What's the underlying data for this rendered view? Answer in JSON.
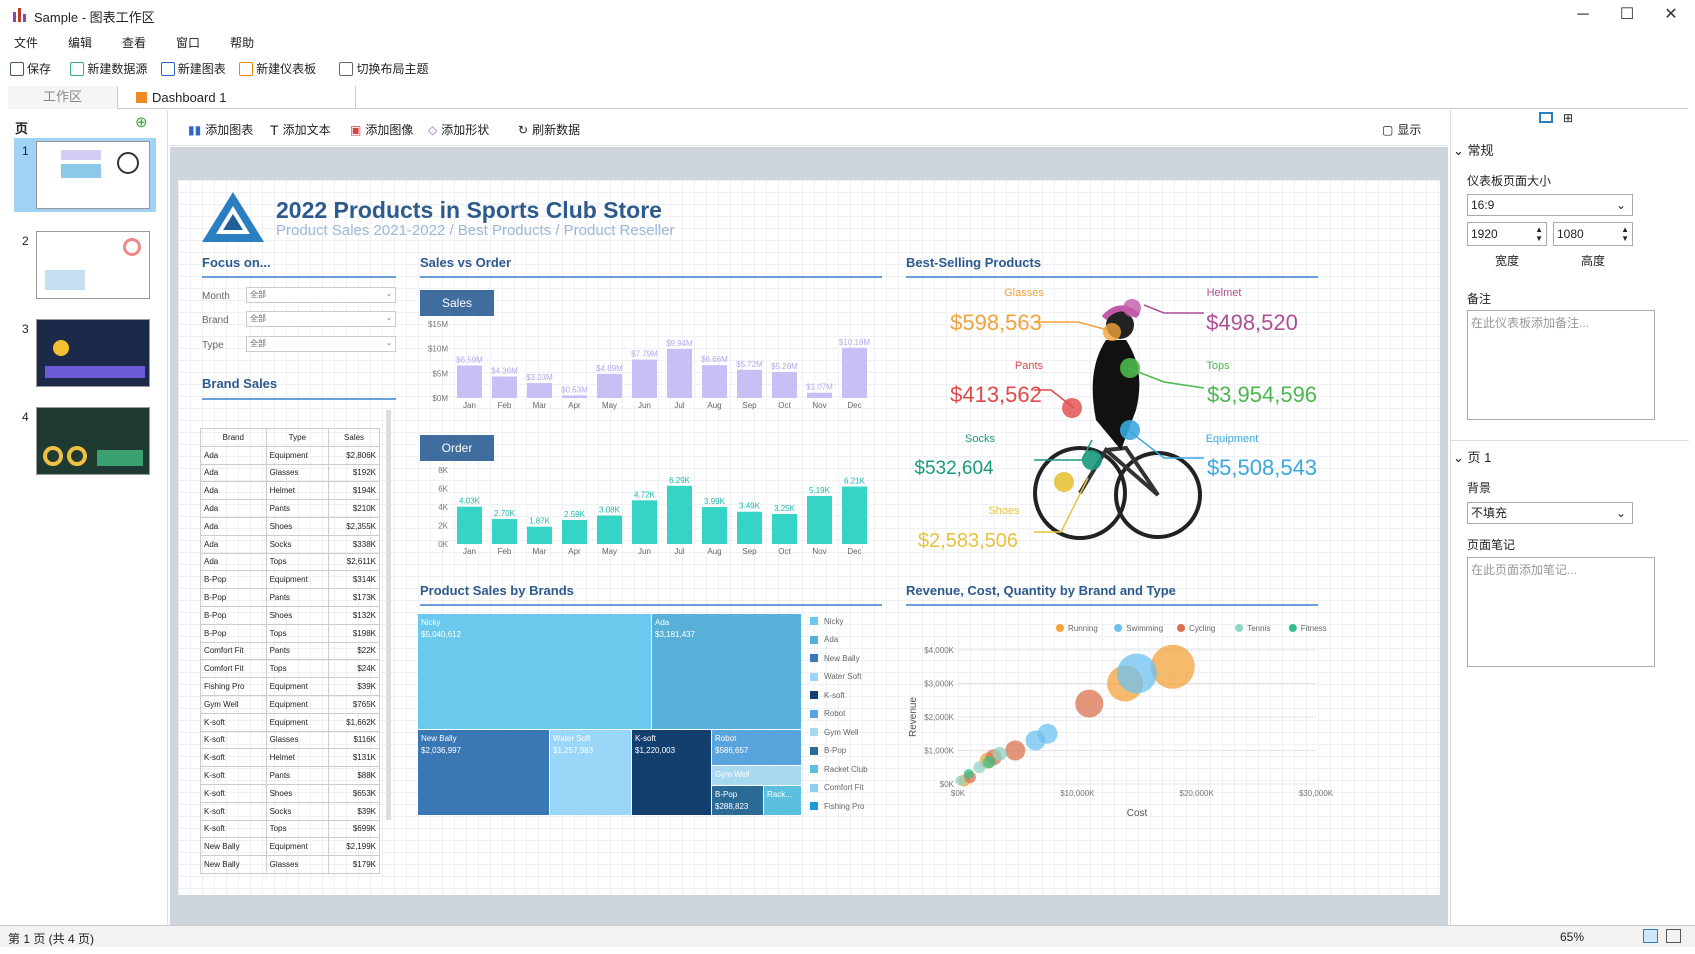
{
  "window": {
    "app_title": "Sample - 图表工作区",
    "minimize": "─",
    "maximize": "☐",
    "close": "✕"
  },
  "menu": [
    "文件",
    "编辑",
    "查看",
    "窗口",
    "帮助"
  ],
  "toolbar": {
    "save": "保存",
    "new_datasource": "新建数据源",
    "new_chart": "新建图表",
    "new_dashboard": "新建仪表板",
    "switch_theme": "切换布局主题"
  },
  "tabs": {
    "workspace": "工作区",
    "dashboard": "Dashboard 1"
  },
  "pages_panel": {
    "title": "页",
    "add": "⊕",
    "pages": [
      "1",
      "2",
      "3",
      "4"
    ]
  },
  "sub_toolbar": {
    "add_chart": "添加图表",
    "add_text": "添加文本",
    "add_image": "添加图像",
    "add_shape": "添加形状",
    "refresh": "刷新数据",
    "show": "显示"
  },
  "dashboard": {
    "title": "2022 Products in Sports Club Store",
    "subtitle": "Product Sales 2021-2022 / Best Products / Product Reseller",
    "focus": {
      "title": "Focus on...",
      "filters": [
        {
          "label": "Month",
          "value": "全部"
        },
        {
          "label": "Brand",
          "value": "全部"
        },
        {
          "label": "Type",
          "value": "全部"
        }
      ]
    },
    "brand_sales": {
      "title": "Brand Sales",
      "headers": [
        "Brand",
        "Type",
        "Sales"
      ],
      "rows": [
        [
          "Ada",
          "Equipment",
          "$2,806K"
        ],
        [
          "Ada",
          "Glasses",
          "$192K"
        ],
        [
          "Ada",
          "Helmet",
          "$194K"
        ],
        [
          "Ada",
          "Pants",
          "$210K"
        ],
        [
          "Ada",
          "Shoes",
          "$2,355K"
        ],
        [
          "Ada",
          "Socks",
          "$338K"
        ],
        [
          "Ada",
          "Tops",
          "$2,611K"
        ],
        [
          "B-Pop",
          "Equipment",
          "$314K"
        ],
        [
          "B-Pop",
          "Pants",
          "$173K"
        ],
        [
          "B-Pop",
          "Shoes",
          "$132K"
        ],
        [
          "B-Pop",
          "Tops",
          "$198K"
        ],
        [
          "Comfort Fit",
          "Pants",
          "$22K"
        ],
        [
          "Comfort Fit",
          "Tops",
          "$24K"
        ],
        [
          "Fishing Pro",
          "Equipment",
          "$39K"
        ],
        [
          "Gym Well",
          "Equipment",
          "$765K"
        ],
        [
          "K-soft",
          "Equipment",
          "$1,662K"
        ],
        [
          "K-soft",
          "Glasses",
          "$116K"
        ],
        [
          "K-soft",
          "Helmet",
          "$131K"
        ],
        [
          "K-soft",
          "Pants",
          "$88K"
        ],
        [
          "K-soft",
          "Shoes",
          "$653K"
        ],
        [
          "K-soft",
          "Socks",
          "$39K"
        ],
        [
          "K-soft",
          "Tops",
          "$699K"
        ],
        [
          "New Bally",
          "Equipment",
          "$2,199K"
        ],
        [
          "New Bally",
          "Glasses",
          "$179K"
        ]
      ]
    },
    "sales_vs_order": {
      "title": "Sales vs Order",
      "sales_tag": "Sales",
      "order_tag": "Order"
    },
    "best_selling": {
      "title": "Best-Selling Products",
      "items": [
        {
          "name": "Glasses",
          "value": "$598,563",
          "color": "#f2a33a"
        },
        {
          "name": "Helmet",
          "value": "$498,520",
          "color": "#b04f95"
        },
        {
          "name": "Pants",
          "value": "$413,562",
          "color": "#e04a4a"
        },
        {
          "name": "Tops",
          "value": "$3,954,596",
          "color": "#4cb84c"
        },
        {
          "name": "Socks",
          "value": "$532,604",
          "color": "#1a9a7e"
        },
        {
          "name": "Equipment",
          "value": "$5,508,543",
          "color": "#3aa8e0"
        },
        {
          "name": "Shoes",
          "value": "$2,583,506",
          "color": "#e8c23a"
        }
      ]
    },
    "treemap": {
      "title": "Product Sales by Brands",
      "blocks": [
        {
          "name": "Nicky",
          "value": "$5,040,612",
          "color": "#6cc9ee"
        },
        {
          "name": "Ada",
          "value": "$3,181,437",
          "color": "#58b0d8"
        },
        {
          "name": "New Bally",
          "value": "$2,036,997",
          "color": "#3a78b5"
        },
        {
          "name": "Water Soft",
          "value": "$1,257,983",
          "color": "#99d6f7"
        },
        {
          "name": "K-soft",
          "value": "$1,220,003",
          "color": "#123f6e"
        },
        {
          "name": "Robot",
          "value": "$586,657",
          "color": "#5aa4dd"
        },
        {
          "name": "Gym Well",
          "value": "",
          "color": "#a7d9f1"
        },
        {
          "name": "B-Pop",
          "value": "$288,823",
          "color": "#2c6a98"
        },
        {
          "name": "Rack...",
          "value": "",
          "color": "#5bbfe0"
        }
      ],
      "legend": [
        "Nicky",
        "Ada",
        "New Bally",
        "Water Soft",
        "K-soft",
        "Robot",
        "Gym Well",
        "B-Pop",
        "Racket Club",
        "Comfort Fit",
        "Fishing Pro"
      ]
    },
    "bubble": {
      "title": "Revenue, Cost, Quantity by Brand and Type"
    }
  },
  "chart_data": [
    {
      "type": "bar",
      "title": "Sales",
      "categories": [
        "Jan",
        "Feb",
        "Mar",
        "Apr",
        "May",
        "Jun",
        "Jul",
        "Aug",
        "Sep",
        "Oct",
        "Nov",
        "Dec"
      ],
      "values": [
        6.59,
        4.36,
        3.03,
        0.53,
        4.89,
        7.79,
        9.94,
        6.66,
        5.72,
        5.28,
        1.07,
        10.18
      ],
      "labels": [
        "$6.59M",
        "$4.36M",
        "$3.03M",
        "$0.53M",
        "$4.89M",
        "$7.79M",
        "$9.94M",
        "$6.66M",
        "$5.72M",
        "$5.28M",
        "$1.07M",
        "$10.18M"
      ],
      "yticks": [
        "$0M",
        "$5M",
        "$10M",
        "$15M"
      ],
      "ylim": [
        0,
        15
      ],
      "color": "#c8c0f5"
    },
    {
      "type": "bar",
      "title": "Order",
      "categories": [
        "Jan",
        "Feb",
        "Mar",
        "Apr",
        "May",
        "Jun",
        "Jul",
        "Aug",
        "Sep",
        "Oct",
        "Nov",
        "Dec"
      ],
      "values": [
        4.03,
        2.7,
        1.87,
        2.59,
        3.08,
        4.72,
        6.29,
        3.99,
        3.49,
        3.25,
        5.19,
        6.21
      ],
      "labels": [
        "4.03K",
        "2.70K",
        "1.87K",
        "2.59K",
        "3.08K",
        "4.72K",
        "6.29K",
        "3.99K",
        "3.49K",
        "3.25K",
        "5.19K",
        "6.21K"
      ],
      "yticks": [
        "0K",
        "2K",
        "4K",
        "6K",
        "8K"
      ],
      "ylim": [
        0,
        8
      ],
      "color": "#35d4c7"
    },
    {
      "type": "scatter",
      "title": "Revenue, Cost, Quantity by Brand and Type",
      "xlabel": "Cost",
      "ylabel": "Revenue",
      "xticks": [
        "$0K",
        "$10,000K",
        "$20,000K",
        "$30,000K"
      ],
      "yticks": [
        "$0K",
        "$1,000K",
        "$2,000K",
        "$3,000K",
        "$4,000K"
      ],
      "xlim": [
        0,
        30000
      ],
      "ylim": [
        0,
        4000
      ],
      "series": [
        {
          "name": "Running",
          "color": "#f2a33a",
          "points": [
            [
              500,
              100,
              6
            ],
            [
              2500,
              700,
              8
            ],
            [
              14000,
              3000,
              18
            ],
            [
              18000,
              3500,
              22
            ]
          ]
        },
        {
          "name": "Swimming",
          "color": "#6ec0f0",
          "points": [
            [
              6500,
              1300,
              10
            ],
            [
              7500,
              1500,
              10
            ],
            [
              15000,
              3300,
              20
            ]
          ]
        },
        {
          "name": "Cycling",
          "color": "#d9734f",
          "points": [
            [
              1000,
              200,
              6
            ],
            [
              3000,
              800,
              8
            ],
            [
              4800,
              1000,
              10
            ],
            [
              11000,
              2400,
              14
            ]
          ]
        },
        {
          "name": "Tennis",
          "color": "#8fd4c4",
          "points": [
            [
              200,
              100,
              5
            ],
            [
              1800,
              500,
              6
            ],
            [
              3500,
              900,
              7
            ]
          ]
        },
        {
          "name": "Fitness",
          "color": "#35c08a",
          "points": [
            [
              900,
              300,
              5
            ],
            [
              2600,
              650,
              6
            ]
          ]
        }
      ]
    }
  ],
  "right_panel": {
    "general": "常规",
    "page_size_label": "仪表板页面大小",
    "page_size": "16:9",
    "width": "1920",
    "height": "1080",
    "width_label": "宽度",
    "height_label": "高度",
    "notes_label": "备注",
    "notes_placeholder": "在此仪表板添加备注...",
    "page_section": "页 1",
    "background_label": "背景",
    "background": "不填充",
    "page_notes_label": "页面笔记",
    "page_notes_placeholder": "在此页面添加笔记..."
  },
  "status": {
    "page": "第 1 页 (共 4 页)",
    "zoom": "65%"
  }
}
